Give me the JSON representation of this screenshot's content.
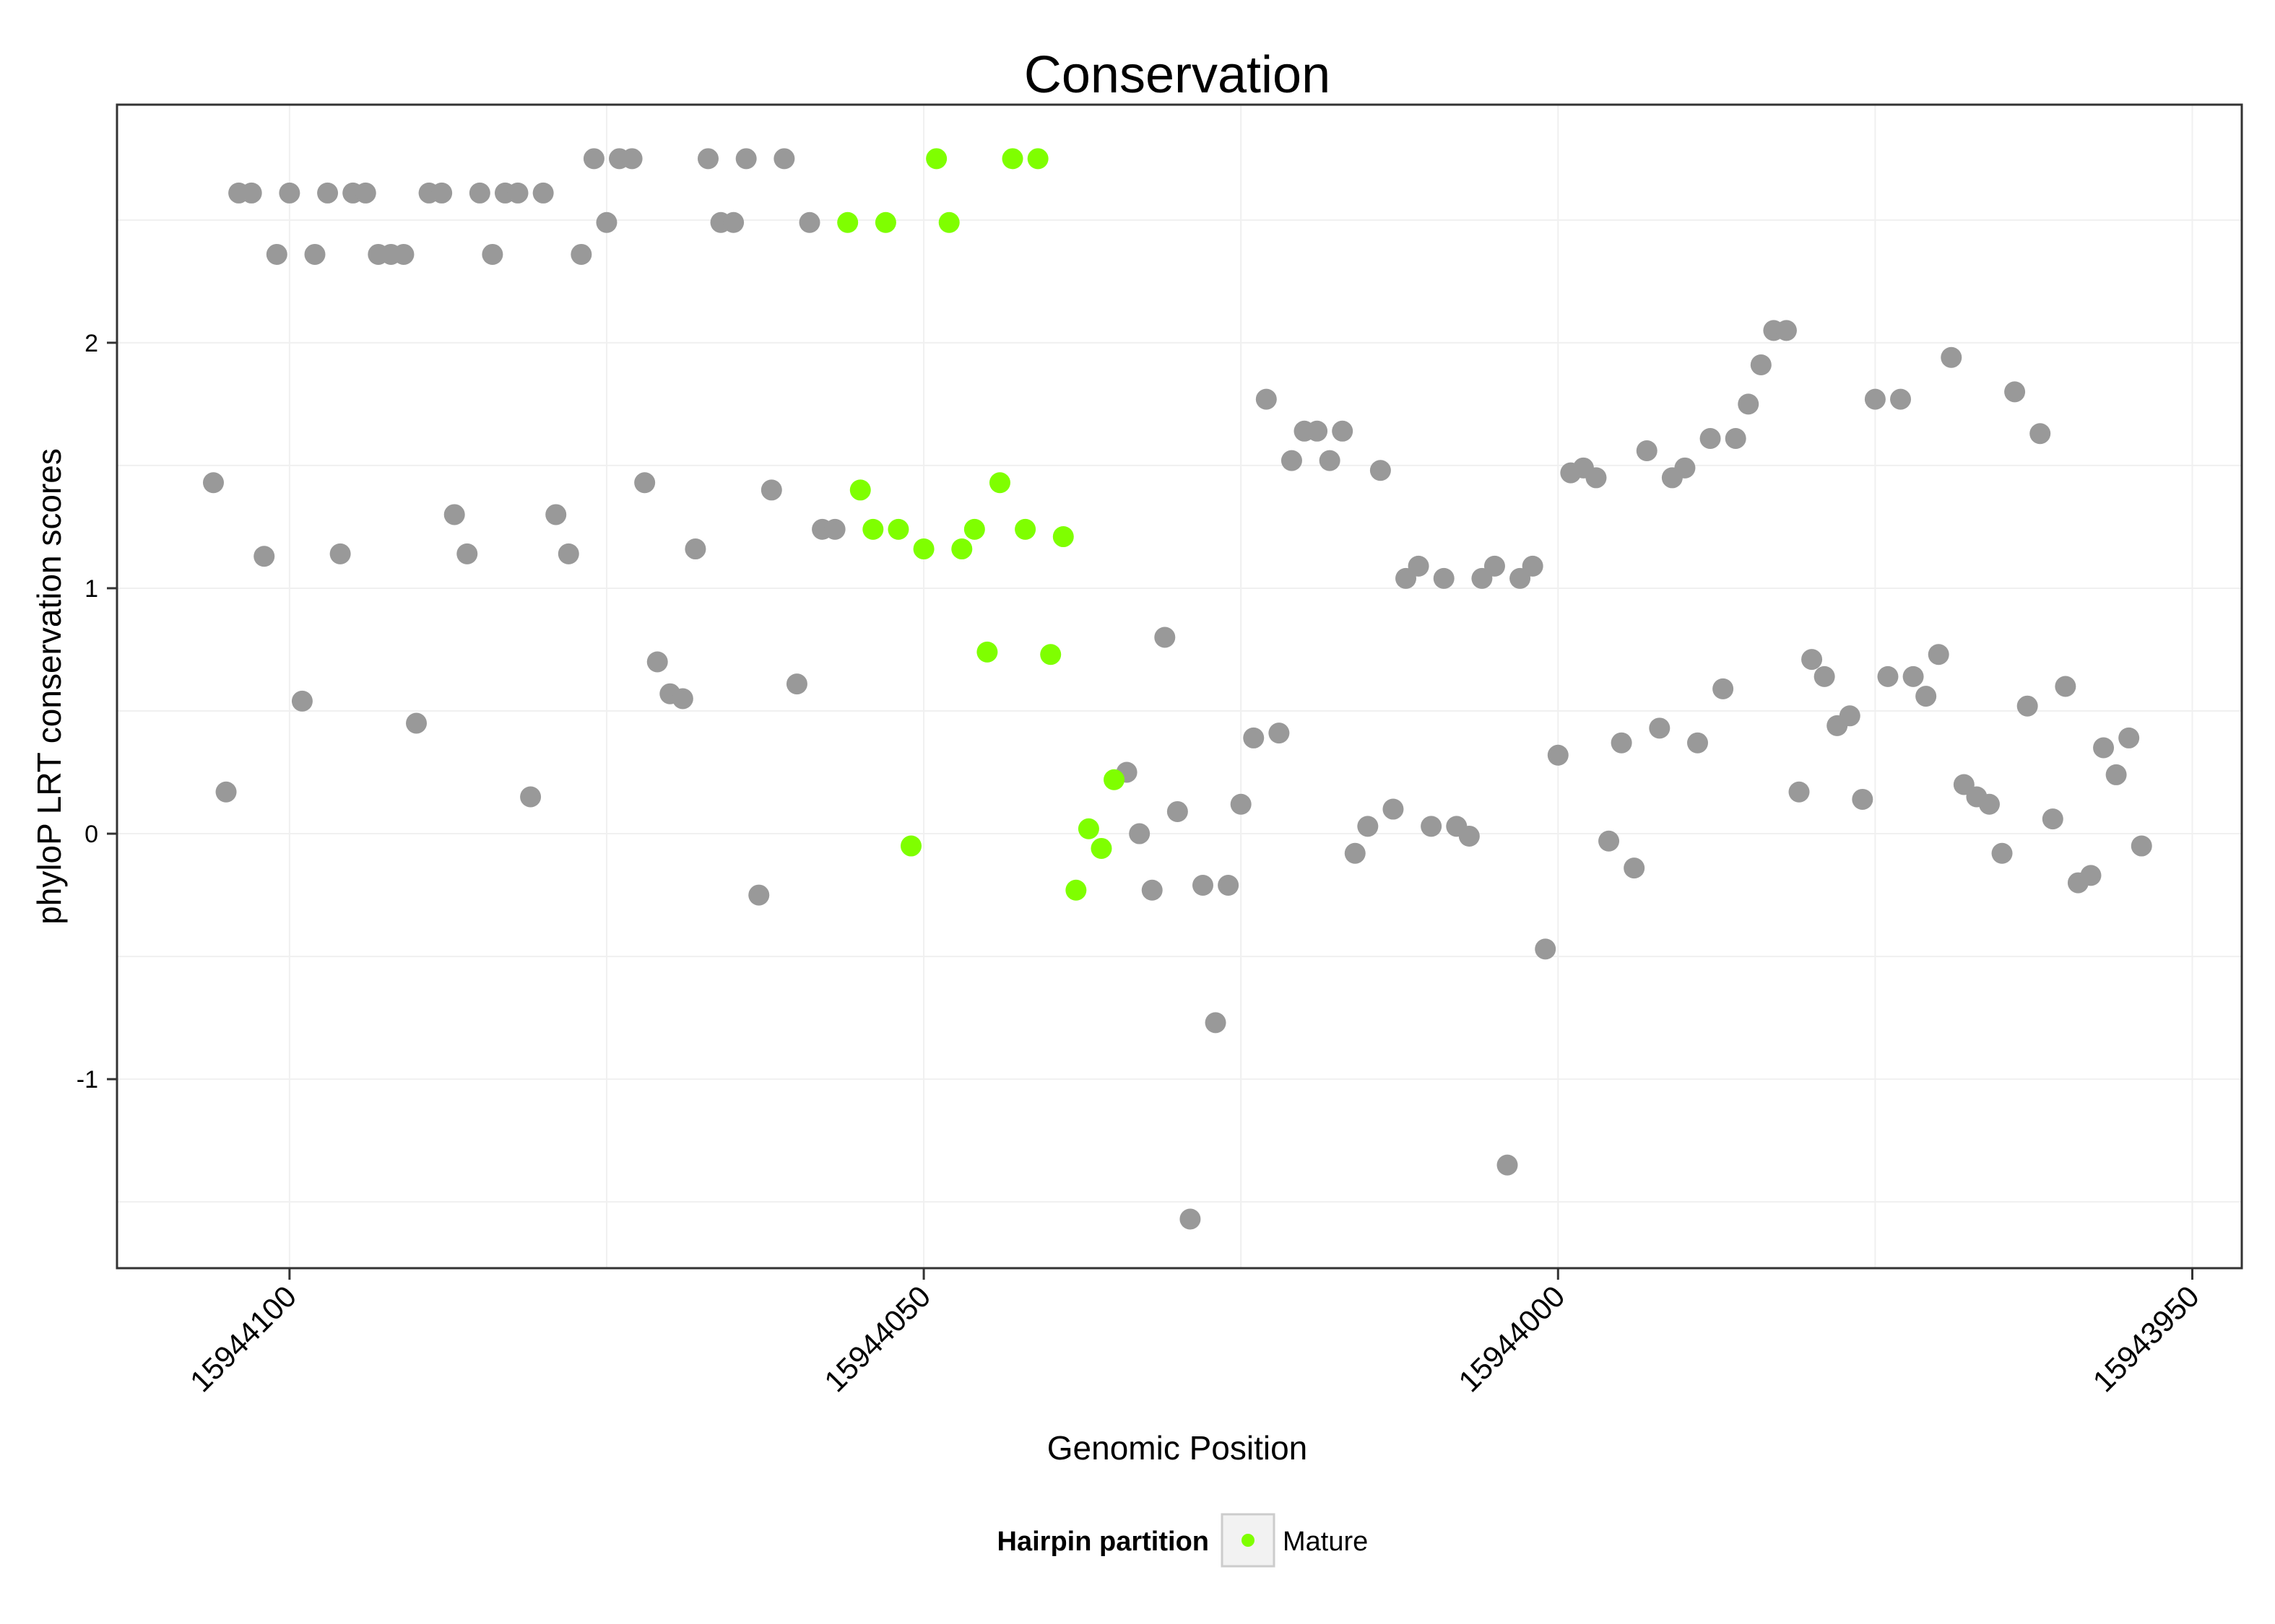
{
  "chart_data": {
    "type": "scatter",
    "title": "Conservation",
    "xlabel": "Genomic Position",
    "ylabel": "phyloP LRT conservation scores",
    "x_reversed": true,
    "xlim": [
      15944113.6,
      15943946.1
    ],
    "ylim": [
      -1.77,
      2.97
    ],
    "x_ticks": [
      15944100,
      15944050,
      15944000,
      15943950
    ],
    "x_tick_labels": [
      "15944100",
      "15944050",
      "15944000",
      "15943950"
    ],
    "y_ticks": [
      -1,
      0,
      1,
      2
    ],
    "y_tick_labels": [
      "-1",
      "0",
      "1",
      "2"
    ],
    "grid": true,
    "legend": {
      "title": "Hairpin partition",
      "position": "bottom",
      "entries": [
        "Mature"
      ]
    },
    "colors": {
      "other": "#999999",
      "mature": "#7FFF00",
      "grid": "#f0f0f0",
      "frame": "#333333"
    },
    "series": [
      {
        "group": "other",
        "points": [
          [
            15944106,
            1.43
          ],
          [
            15944105,
            0.17
          ],
          [
            15944104,
            2.61
          ],
          [
            15944103,
            2.61
          ],
          [
            15944102,
            1.13
          ],
          [
            15944101,
            2.36
          ],
          [
            15944100,
            2.61
          ],
          [
            15944099,
            0.54
          ],
          [
            15944098,
            2.36
          ],
          [
            15944097,
            2.61
          ],
          [
            15944096,
            1.14
          ],
          [
            15944095,
            2.61
          ],
          [
            15944094,
            2.61
          ],
          [
            15944093,
            2.36
          ],
          [
            15944092,
            2.36
          ],
          [
            15944091,
            2.36
          ],
          [
            15944090,
            0.45
          ],
          [
            15944089,
            2.61
          ],
          [
            15944088,
            2.61
          ],
          [
            15944087,
            1.3
          ],
          [
            15944086,
            1.14
          ],
          [
            15944085,
            2.61
          ],
          [
            15944084,
            2.36
          ],
          [
            15944083,
            2.61
          ],
          [
            15944082,
            2.61
          ],
          [
            15944081,
            0.15
          ],
          [
            15944080,
            2.61
          ],
          [
            15944079,
            1.3
          ],
          [
            15944078,
            1.14
          ],
          [
            15944077,
            2.36
          ],
          [
            15944076,
            2.75
          ],
          [
            15944075,
            2.49
          ],
          [
            15944074,
            2.75
          ],
          [
            15944073,
            2.75
          ],
          [
            15944072,
            1.43
          ],
          [
            15944071,
            0.7
          ],
          [
            15944070,
            0.57
          ],
          [
            15944069,
            0.55
          ],
          [
            15944068,
            1.16
          ],
          [
            15944067,
            2.75
          ],
          [
            15944066,
            2.49
          ],
          [
            15944065,
            2.49
          ],
          [
            15944064,
            2.75
          ],
          [
            15944063,
            -0.25
          ],
          [
            15944062,
            1.4
          ],
          [
            15944061,
            2.75
          ],
          [
            15944060,
            0.61
          ],
          [
            15944059,
            2.49
          ],
          [
            15944058,
            1.24
          ],
          [
            15944057,
            1.24
          ],
          [
            15944034,
            0.25
          ],
          [
            15944033,
            0
          ],
          [
            15944032,
            -0.23
          ],
          [
            15944031,
            0.8
          ],
          [
            15944030,
            0.09
          ],
          [
            15944029,
            -1.57
          ],
          [
            15944028,
            -0.21
          ],
          [
            15944027,
            -0.77
          ],
          [
            15944026,
            -0.21
          ],
          [
            15944025,
            0.12
          ],
          [
            15944024,
            0.39
          ],
          [
            15944023,
            1.77
          ],
          [
            15944022,
            0.41
          ],
          [
            15944021,
            1.52
          ],
          [
            15944020,
            1.64
          ],
          [
            15944019,
            1.64
          ],
          [
            15944018,
            1.52
          ],
          [
            15944017,
            1.64
          ],
          [
            15944016,
            -0.08
          ],
          [
            15944015,
            0.03
          ],
          [
            15944014,
            1.48
          ],
          [
            15944013,
            0.1
          ],
          [
            15944012,
            1.04
          ],
          [
            15944011,
            1.09
          ],
          [
            15944010,
            0.03
          ],
          [
            15944009,
            1.04
          ],
          [
            15944008,
            0.03
          ],
          [
            15944007,
            -0.01
          ],
          [
            15944006,
            1.04
          ],
          [
            15944005,
            1.09
          ],
          [
            15944004,
            -1.35
          ],
          [
            15944003,
            1.04
          ],
          [
            15944002,
            1.09
          ],
          [
            15944001,
            -0.47
          ],
          [
            15944000,
            0.32
          ],
          [
            15943999,
            1.47
          ],
          [
            15943998,
            1.49
          ],
          [
            15943997,
            1.45
          ],
          [
            15943996,
            -0.03
          ],
          [
            15943995,
            0.37
          ],
          [
            15943994,
            -0.14
          ],
          [
            15943993,
            1.56
          ],
          [
            15943992,
            0.43
          ],
          [
            15943991,
            1.45
          ],
          [
            15943990,
            1.49
          ],
          [
            15943989,
            0.37
          ],
          [
            15943988,
            1.61
          ],
          [
            15943987,
            0.59
          ],
          [
            15943986,
            1.61
          ],
          [
            15943985,
            1.75
          ],
          [
            15943984,
            1.91
          ],
          [
            15943983,
            2.05
          ],
          [
            15943982,
            2.05
          ],
          [
            15943981,
            0.17
          ],
          [
            15943980,
            0.71
          ],
          [
            15943979,
            0.64
          ],
          [
            15943978,
            0.44
          ],
          [
            15943977,
            0.48
          ],
          [
            15943976,
            0.14
          ],
          [
            15943975,
            1.77
          ],
          [
            15943974,
            0.64
          ],
          [
            15943973,
            1.77
          ],
          [
            15943972,
            0.64
          ],
          [
            15943971,
            0.56
          ],
          [
            15943970,
            0.73
          ],
          [
            15943969,
            1.94
          ],
          [
            15943968,
            0.2
          ],
          [
            15943967,
            0.15
          ],
          [
            15943966,
            0.12
          ],
          [
            15943965,
            -0.08
          ],
          [
            15943964,
            1.8
          ],
          [
            15943963,
            0.52
          ],
          [
            15943962,
            1.63
          ],
          [
            15943961,
            0.06
          ],
          [
            15943960,
            0.6
          ],
          [
            15943959,
            -0.2
          ],
          [
            15943958,
            -0.17
          ],
          [
            15943957,
            0.35
          ],
          [
            15943956,
            0.24
          ],
          [
            15943955,
            0.39
          ],
          [
            15943954,
            -0.05
          ]
        ]
      },
      {
        "group": "mature",
        "name": "Mature",
        "points": [
          [
            15944056,
            2.49
          ],
          [
            15944055,
            1.4
          ],
          [
            15944054,
            1.24
          ],
          [
            15944053,
            2.49
          ],
          [
            15944052,
            1.24
          ],
          [
            15944051,
            -0.05
          ],
          [
            15944050,
            1.16
          ],
          [
            15944049,
            2.75
          ],
          [
            15944048,
            2.49
          ],
          [
            15944047,
            1.16
          ],
          [
            15944046,
            1.24
          ],
          [
            15944045,
            0.74
          ],
          [
            15944044,
            1.43
          ],
          [
            15944043,
            2.75
          ],
          [
            15944042,
            1.24
          ],
          [
            15944041,
            2.75
          ],
          [
            15944040,
            0.73
          ],
          [
            15944039,
            1.21
          ],
          [
            15944038,
            -0.23
          ],
          [
            15944037,
            0.02
          ],
          [
            15944036,
            -0.06
          ],
          [
            15944035,
            0.22
          ]
        ]
      }
    ]
  }
}
